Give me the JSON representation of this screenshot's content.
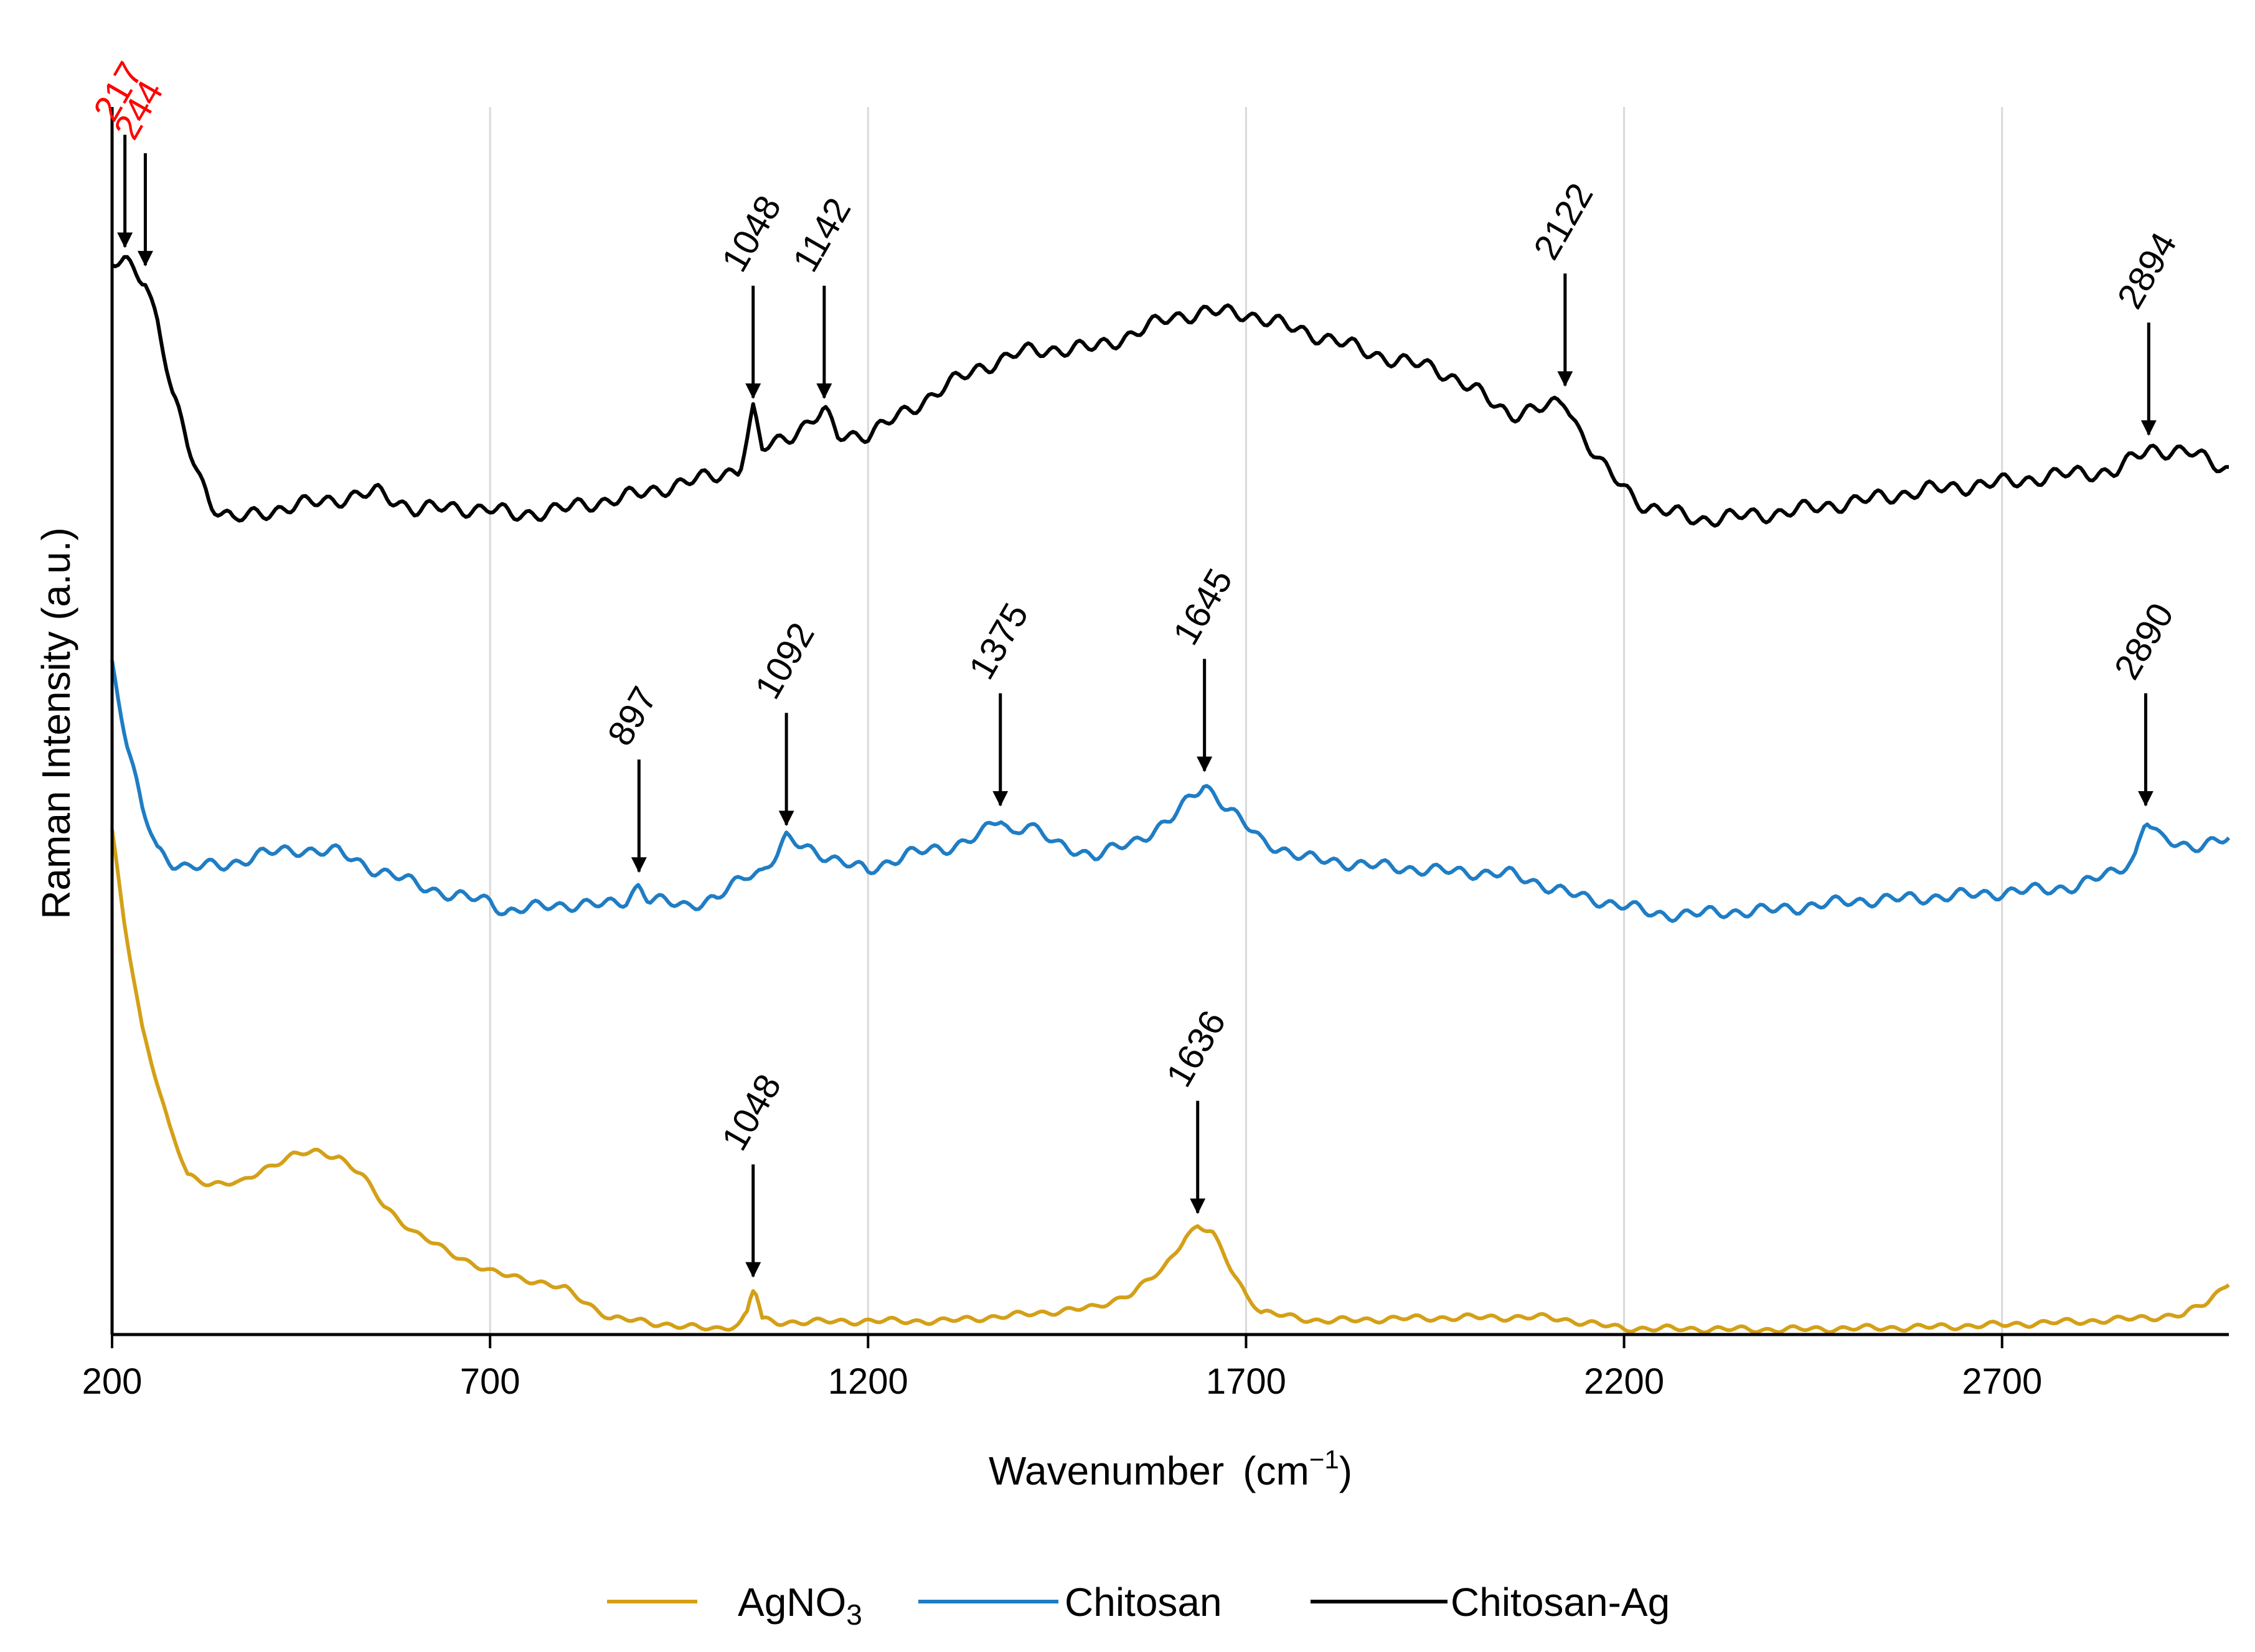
{
  "chart_data": {
    "type": "line",
    "title": "",
    "xlabel": "Wavenumber",
    "xlabel_unit_base": "(cm",
    "xlabel_unit_sup": "−1",
    "xlabel_unit_close": ")",
    "ylabel": "Raman Intensity (a.u.)",
    "xlim": [
      200,
      3000
    ],
    "ylim": [
      0,
      100
    ],
    "x_ticks": [
      200,
      700,
      1200,
      1700,
      2200,
      2700
    ],
    "x_tick_labels": [
      "200",
      "700",
      "1200",
      "1700",
      "2200",
      "2700"
    ],
    "vertical_gridlines": [
      700,
      1200,
      1700,
      2200,
      2700
    ],
    "legend_position": "bottom-center",
    "series": [
      {
        "name": "AgNO3",
        "legend_base": "AgNO",
        "legend_sub": "3",
        "color": "#d4a017",
        "points": [
          [
            200,
            41
          ],
          [
            215,
            34
          ],
          [
            240,
            25
          ],
          [
            275,
            17
          ],
          [
            300,
            13
          ],
          [
            330,
            12.3
          ],
          [
            370,
            12.3
          ],
          [
            400,
            13.5
          ],
          [
            440,
            14.6
          ],
          [
            470,
            14.9
          ],
          [
            500,
            14.5
          ],
          [
            530,
            13
          ],
          [
            560,
            10.5
          ],
          [
            600,
            8.3
          ],
          [
            640,
            6.9
          ],
          [
            700,
            5.1
          ],
          [
            750,
            4.5
          ],
          [
            800,
            3.7
          ],
          [
            830,
            2.5
          ],
          [
            860,
            1.3
          ],
          [
            900,
            1.1
          ],
          [
            960,
            0.6
          ],
          [
            1000,
            0.5
          ],
          [
            1030,
            0.8
          ],
          [
            1040,
            1.8
          ],
          [
            1047,
            3.7
          ],
          [
            1053,
            3.2
          ],
          [
            1060,
            1.2
          ],
          [
            1080,
            1.0
          ],
          [
            1200,
            1.1
          ],
          [
            1300,
            1.1
          ],
          [
            1400,
            1.6
          ],
          [
            1500,
            2.2
          ],
          [
            1550,
            3.4
          ],
          [
            1590,
            5.3
          ],
          [
            1620,
            8.0
          ],
          [
            1636,
            8.8
          ],
          [
            1655,
            8.3
          ],
          [
            1680,
            5.4
          ],
          [
            1700,
            3.3
          ],
          [
            1720,
            1.8
          ],
          [
            1800,
            1.1
          ],
          [
            1900,
            1.3
          ],
          [
            2000,
            1.4
          ],
          [
            2100,
            1.4
          ],
          [
            2200,
            0.5
          ],
          [
            2400,
            0.4
          ],
          [
            2600,
            0.6
          ],
          [
            2700,
            0.8
          ],
          [
            2850,
            1.2
          ],
          [
            2940,
            1.6
          ],
          [
            2970,
            2.6
          ],
          [
            3000,
            4.3
          ]
        ]
      },
      {
        "name": "Chitosan",
        "legend_base": "Chitosan",
        "legend_sub": "",
        "color": "#1f7dc4",
        "points": [
          [
            200,
            54.8
          ],
          [
            220,
            48
          ],
          [
            240,
            42.8
          ],
          [
            260,
            39.5
          ],
          [
            280,
            38.5
          ],
          [
            300,
            38.1
          ],
          [
            350,
            38.2
          ],
          [
            400,
            39.2
          ],
          [
            450,
            39.5
          ],
          [
            500,
            39.3
          ],
          [
            550,
            37.8
          ],
          [
            600,
            36.8
          ],
          [
            650,
            35.7
          ],
          [
            700,
            35.4
          ],
          [
            720,
            34.4
          ],
          [
            780,
            35.0
          ],
          [
            850,
            35.0
          ],
          [
            880,
            35.4
          ],
          [
            897,
            36.6
          ],
          [
            910,
            35.4
          ],
          [
            960,
            35.0
          ],
          [
            1000,
            35.5
          ],
          [
            1040,
            37.5
          ],
          [
            1060,
            37.8
          ],
          [
            1080,
            39.2
          ],
          [
            1092,
            40.4
          ],
          [
            1110,
            39.8
          ],
          [
            1150,
            38.9
          ],
          [
            1200,
            37.7
          ],
          [
            1250,
            39.2
          ],
          [
            1300,
            39.5
          ],
          [
            1350,
            40.8
          ],
          [
            1375,
            42.0
          ],
          [
            1390,
            40.7
          ],
          [
            1410,
            41.8
          ],
          [
            1450,
            39.8
          ],
          [
            1500,
            39.1
          ],
          [
            1550,
            40.0
          ],
          [
            1600,
            42.0
          ],
          [
            1645,
            44.8
          ],
          [
            1680,
            42.7
          ],
          [
            1720,
            40.2
          ],
          [
            1780,
            38.8
          ],
          [
            1850,
            38.3
          ],
          [
            1950,
            37.8
          ],
          [
            2050,
            37.5
          ],
          [
            2100,
            36.5
          ],
          [
            2150,
            35.5
          ],
          [
            2200,
            35.0
          ],
          [
            2240,
            34.2
          ],
          [
            2300,
            34.3
          ],
          [
            2400,
            34.6
          ],
          [
            2500,
            35.3
          ],
          [
            2600,
            35.6
          ],
          [
            2700,
            36.0
          ],
          [
            2800,
            36.5
          ],
          [
            2850,
            37.8
          ],
          [
            2875,
            38.8
          ],
          [
            2890,
            42.0
          ],
          [
            2910,
            40.3
          ],
          [
            2950,
            39.8
          ],
          [
            3000,
            40.3
          ]
        ]
      },
      {
        "name": "Chitosan-Ag",
        "legend_base": "Chitosan-Ag",
        "legend_sub": "",
        "color": "#000000",
        "points": [
          [
            200,
            87.1
          ],
          [
            217,
            87.5
          ],
          [
            230,
            86.8
          ],
          [
            244,
            86.0
          ],
          [
            260,
            82.5
          ],
          [
            280,
            76.5
          ],
          [
            300,
            72.5
          ],
          [
            330,
            67.8
          ],
          [
            360,
            66.3
          ],
          [
            400,
            67.0
          ],
          [
            450,
            67.6
          ],
          [
            500,
            68.1
          ],
          [
            550,
            68.6
          ],
          [
            600,
            67.3
          ],
          [
            700,
            67.3
          ],
          [
            730,
            66.7
          ],
          [
            800,
            67.3
          ],
          [
            900,
            68.5
          ],
          [
            950,
            69.3
          ],
          [
            1000,
            70.0
          ],
          [
            1030,
            70.6
          ],
          [
            1040,
            73.0
          ],
          [
            1048,
            75.2
          ],
          [
            1060,
            72.1
          ],
          [
            1100,
            73.4
          ],
          [
            1142,
            75.2
          ],
          [
            1160,
            73.2
          ],
          [
            1200,
            73.4
          ],
          [
            1250,
            75.1
          ],
          [
            1300,
            77.2
          ],
          [
            1350,
            78.8
          ],
          [
            1400,
            80.0
          ],
          [
            1450,
            80.3
          ],
          [
            1500,
            80.4
          ],
          [
            1550,
            81.5
          ],
          [
            1600,
            82.9
          ],
          [
            1650,
            83.3
          ],
          [
            1700,
            83.2
          ],
          [
            1750,
            82.2
          ],
          [
            1800,
            81.3
          ],
          [
            1850,
            80.3
          ],
          [
            1900,
            79.3
          ],
          [
            1950,
            78.8
          ],
          [
            2000,
            77.0
          ],
          [
            2050,
            75.0
          ],
          [
            2100,
            75.5
          ],
          [
            2122,
            76.2
          ],
          [
            2140,
            73.8
          ],
          [
            2170,
            70.8
          ],
          [
            2200,
            69.0
          ],
          [
            2230,
            67.4
          ],
          [
            2300,
            66.4
          ],
          [
            2400,
            66.9
          ],
          [
            2500,
            67.8
          ],
          [
            2600,
            68.8
          ],
          [
            2700,
            69.4
          ],
          [
            2800,
            70.2
          ],
          [
            2850,
            70.3
          ],
          [
            2894,
            72.2
          ],
          [
            2950,
            71.8
          ],
          [
            3000,
            70.5
          ]
        ]
      }
    ],
    "annotations": [
      {
        "series": "Chitosan-Ag",
        "x": 217,
        "label": "217",
        "color": "#ff0000"
      },
      {
        "series": "Chitosan-Ag",
        "x": 244,
        "label": "244",
        "color": "#ff0000"
      },
      {
        "series": "Chitosan-Ag",
        "x": 1048,
        "label": "1048",
        "color": "#000000"
      },
      {
        "series": "Chitosan-Ag",
        "x": 1142,
        "label": "1142",
        "color": "#000000"
      },
      {
        "series": "Chitosan-Ag",
        "x": 2122,
        "label": "2122",
        "color": "#000000"
      },
      {
        "series": "Chitosan-Ag",
        "x": 2894,
        "label": "2894",
        "color": "#000000"
      },
      {
        "series": "Chitosan",
        "x": 897,
        "label": "897",
        "color": "#000000"
      },
      {
        "series": "Chitosan",
        "x": 1092,
        "label": "1092",
        "color": "#000000"
      },
      {
        "series": "Chitosan",
        "x": 1375,
        "label": "1375",
        "color": "#000000"
      },
      {
        "series": "Chitosan",
        "x": 1645,
        "label": "1645",
        "color": "#000000"
      },
      {
        "series": "Chitosan",
        "x": 2890,
        "label": "2890",
        "color": "#000000"
      },
      {
        "series": "AgNO3",
        "x": 1048,
        "label": "1048",
        "color": "#000000"
      },
      {
        "series": "AgNO3",
        "x": 1636,
        "label": "1636",
        "color": "#000000"
      }
    ]
  }
}
